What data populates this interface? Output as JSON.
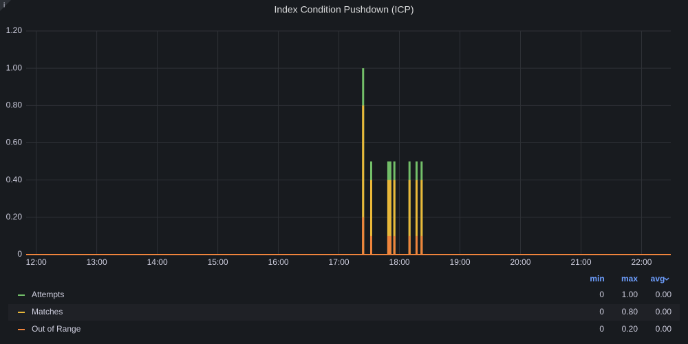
{
  "chart_data": {
    "type": "bar",
    "title": "Index Condition Pushdown (ICP)",
    "x": [
      "17:24",
      "17:32",
      "17:49",
      "17:51",
      "17:55",
      "18:10",
      "18:17",
      "18:22"
    ],
    "xlim": [
      "11:50",
      "22:29"
    ],
    "xticks": [
      "12:00",
      "13:00",
      "14:00",
      "15:00",
      "16:00",
      "17:00",
      "18:00",
      "19:00",
      "20:00",
      "21:00",
      "22:00"
    ],
    "ylim": [
      0,
      1.2
    ],
    "yticks": [
      0,
      {
        "value": 0.2,
        "label": "0.20"
      },
      {
        "value": 0.4,
        "label": "0.40"
      },
      {
        "value": 0.6,
        "label": "0.60"
      },
      {
        "value": 0.8,
        "label": "0.80"
      },
      {
        "value": 1.0,
        "label": "1.00"
      },
      {
        "value": 1.2,
        "label": "1.20"
      }
    ],
    "grid": true,
    "legend_columns": [
      "min",
      "max",
      "avg"
    ],
    "series": [
      {
        "name": "Attempts",
        "color": "#73bf69",
        "values": [
          1.0,
          0.5,
          0.5,
          0.5,
          0.5,
          0.5,
          0.5,
          0.5
        ],
        "stats": [
          "0",
          "1.00",
          "0.00"
        ]
      },
      {
        "name": "Matches",
        "color": "#eab839",
        "values": [
          0.8,
          0.4,
          0.4,
          0.4,
          0.4,
          0.4,
          0.4,
          0.4
        ],
        "stats": [
          "0",
          "0.80",
          "0.00"
        ]
      },
      {
        "name": "Out of Range",
        "color": "#ef843c",
        "values": [
          0.2,
          0.1,
          0.1,
          0.1,
          0.1,
          0.1,
          0.1,
          0.1
        ],
        "stats": [
          "0",
          "0.20",
          "0.00"
        ]
      }
    ]
  }
}
